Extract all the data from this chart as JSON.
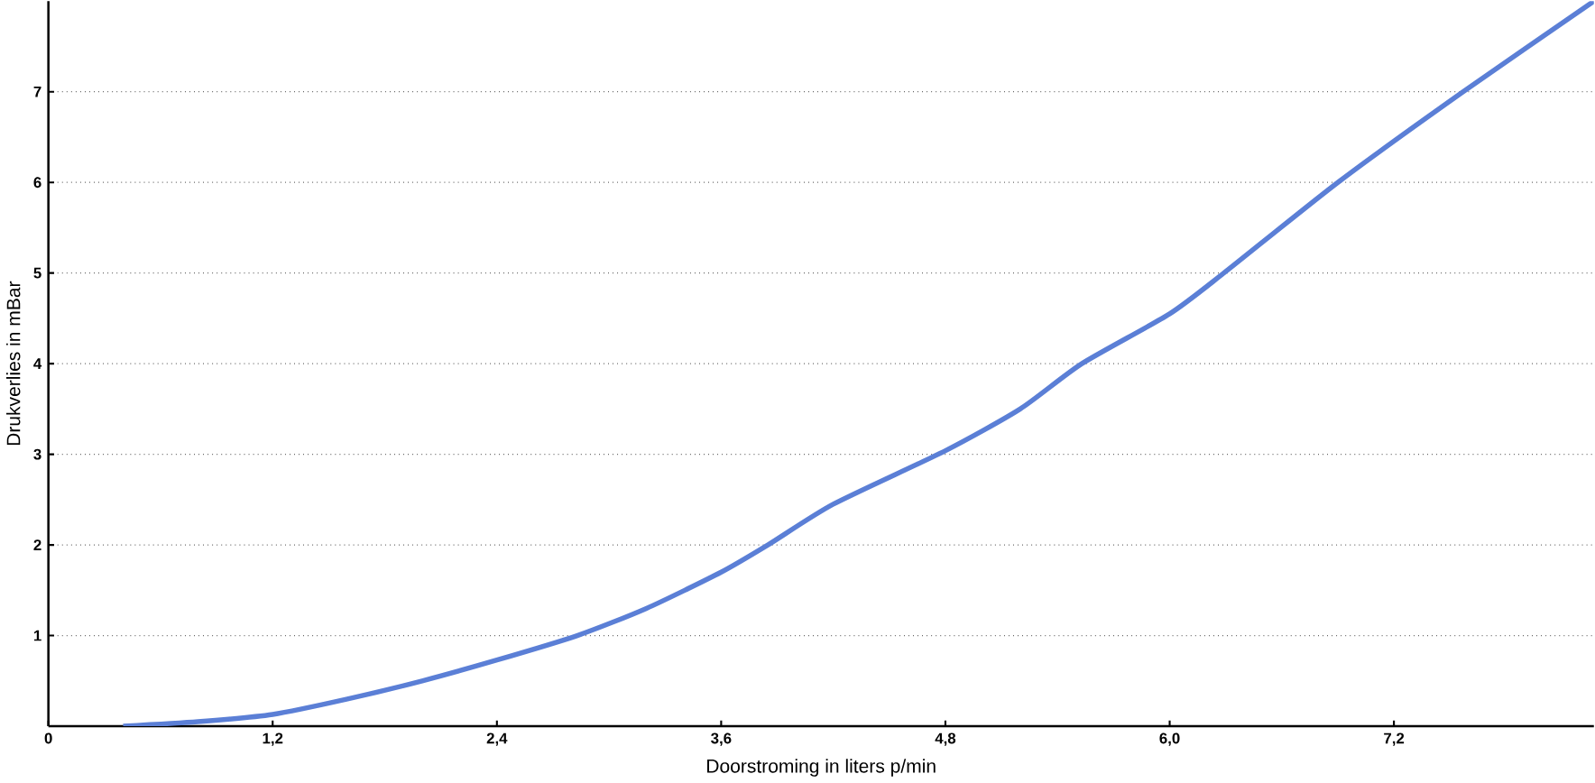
{
  "chart_data": {
    "type": "line",
    "xlabel": "Doorstroming in liters p/min",
    "ylabel": "Drukverlies in mBar",
    "x": [
      0.4,
      0.8,
      1.2,
      1.6,
      2.0,
      2.4,
      2.83,
      3.2,
      3.6,
      3.85,
      4.2,
      4.8,
      5.2,
      5.53,
      6.0,
      6.29,
      6.9,
      7.57,
      8.27
    ],
    "series": [
      {
        "color": "#5b7fd6",
        "values": [
          0,
          0.05,
          0.13,
          0.3,
          0.5,
          0.73,
          1.0,
          1.3,
          1.7,
          2.0,
          2.45,
          3.04,
          3.5,
          4.0,
          4.55,
          5.0,
          6.0,
          7.0,
          8.0
        ]
      }
    ],
    "xlim": [
      0,
      8.27
    ],
    "ylim": [
      0,
      8
    ],
    "xticks": [
      {
        "value": 0,
        "label": "0"
      },
      {
        "value": 1.2,
        "label": "1,2"
      },
      {
        "value": 2.4,
        "label": "2,4"
      },
      {
        "value": 3.6,
        "label": "3,6"
      },
      {
        "value": 4.8,
        "label": "4,8"
      },
      {
        "value": 6.0,
        "label": "6,0"
      },
      {
        "value": 7.2,
        "label": "7,2"
      }
    ],
    "yticks": [
      1,
      2,
      3,
      4,
      5,
      6,
      7
    ],
    "grid": "y",
    "marker": "none",
    "line_style": "solid"
  }
}
